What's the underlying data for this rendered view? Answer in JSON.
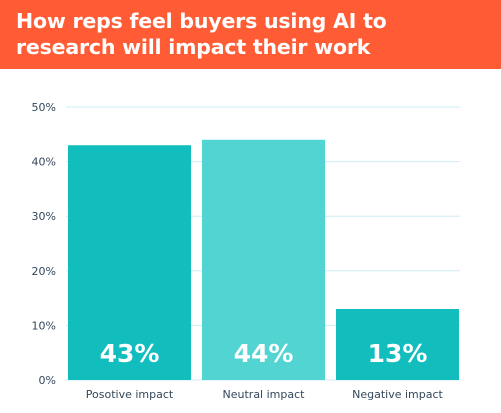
{
  "header": {
    "title": "How reps feel buyers using AI to research will impact their work"
  },
  "colors": {
    "header_bg": "#ff5c35",
    "bar_dark": "#12bdbd",
    "bar_light": "#52d4d2",
    "grid": "#cdeef4"
  },
  "chart_data": {
    "type": "bar",
    "title": "How reps feel buyers using AI to research will impact their work",
    "categories": [
      "Posotive impact",
      "Neutral impact",
      "Negative impact"
    ],
    "values": [
      43,
      44,
      13
    ],
    "data_labels": [
      "43%",
      "44%",
      "13%"
    ],
    "bar_colors": [
      "#12bdbd",
      "#52d4d2",
      "#12bdbd"
    ],
    "ylim": [
      0,
      50
    ],
    "yticks": [
      0,
      10,
      20,
      30,
      40,
      50
    ],
    "ytick_labels": [
      "0%",
      "10%",
      "20%",
      "30%",
      "40%",
      "50%"
    ],
    "xlabel": "",
    "ylabel": "",
    "grid": true,
    "legend": "none"
  }
}
